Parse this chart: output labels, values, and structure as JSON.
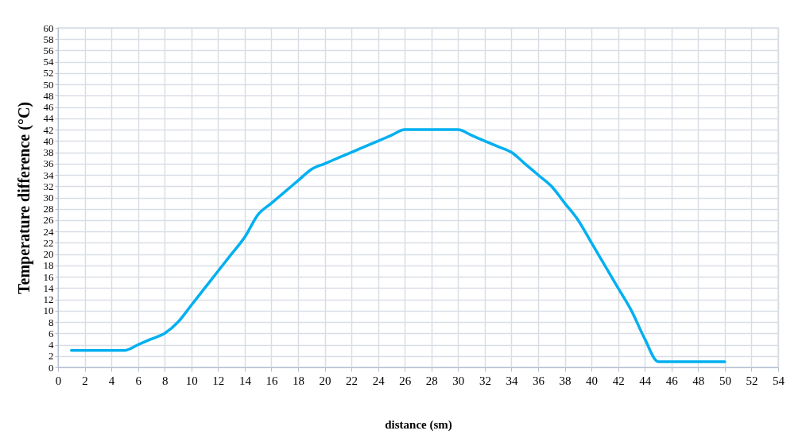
{
  "chart_data": {
    "type": "line",
    "xlabel": "distance (sm)",
    "ylabel": "Temperature difference  (°C)",
    "x": [
      1,
      2,
      3,
      4,
      5,
      6,
      7,
      8,
      9,
      10,
      11,
      12,
      13,
      14,
      15,
      16,
      17,
      18,
      19,
      20,
      21,
      22,
      23,
      24,
      25,
      26,
      27,
      28,
      29,
      30,
      31,
      32,
      33,
      34,
      35,
      36,
      37,
      38,
      39,
      40,
      41,
      42,
      43,
      44,
      45,
      46,
      47,
      48,
      49,
      50
    ],
    "series": [
      {
        "color": "#00b0f0",
        "values": [
          3,
          3,
          3,
          3,
          3,
          4,
          5,
          6,
          8,
          11,
          14,
          17,
          20,
          23,
          27,
          29,
          31,
          33,
          35,
          36,
          37,
          38,
          39,
          40,
          41,
          42,
          42,
          42,
          42,
          42,
          41,
          40,
          39,
          38,
          36,
          34,
          32,
          29,
          26,
          22,
          18,
          14,
          10,
          5,
          1,
          1,
          1,
          1,
          1,
          1
        ]
      }
    ],
    "xlim": [
      0,
      54
    ],
    "xticks": [
      0,
      2,
      4,
      6,
      8,
      10,
      12,
      14,
      16,
      18,
      20,
      22,
      24,
      26,
      28,
      30,
      32,
      34,
      36,
      38,
      40,
      42,
      44,
      46,
      48,
      50,
      52,
      54
    ],
    "ylim": [
      0,
      60
    ],
    "yticks": [
      0,
      2,
      4,
      6,
      8,
      10,
      12,
      14,
      16,
      18,
      20,
      22,
      24,
      26,
      28,
      30,
      32,
      34,
      36,
      38,
      40,
      42,
      44,
      46,
      48,
      50,
      52,
      54,
      56,
      58,
      60
    ],
    "grid": true,
    "marker": "none",
    "line_style": "solid"
  }
}
